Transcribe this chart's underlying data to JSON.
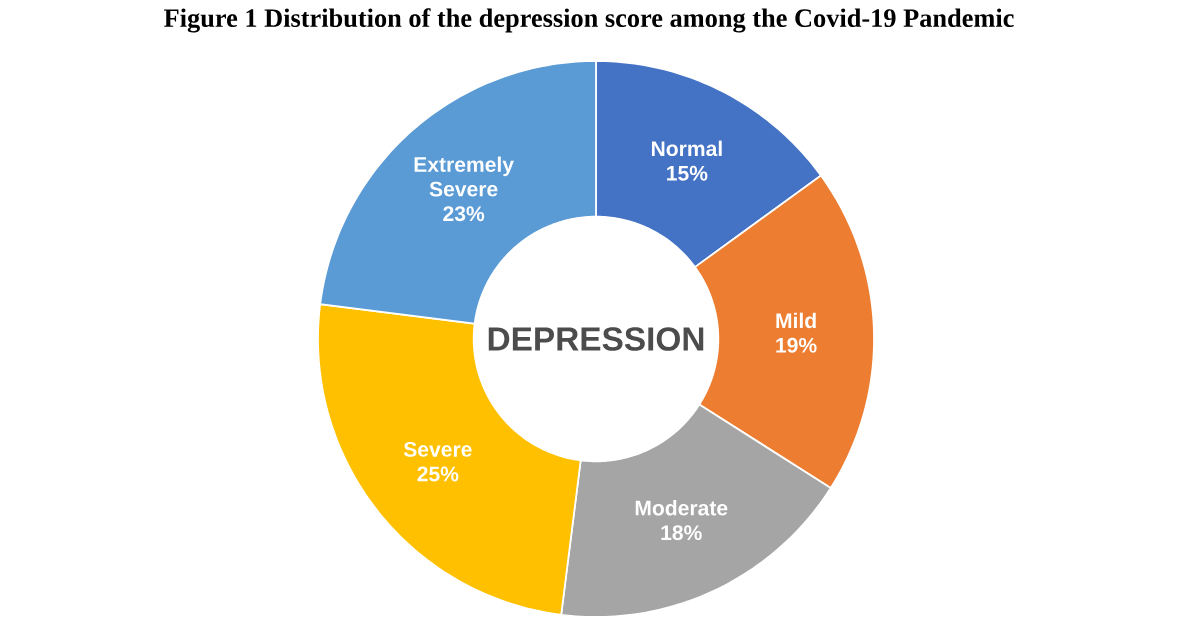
{
  "chart_data": {
    "type": "donut",
    "title": "Figure 1 Distribution of the depression score among the Covid-19 Pandemic",
    "categories": [
      "Normal",
      "Mild",
      "Moderate",
      "Severe",
      "Extremely Severe"
    ],
    "values": [
      15,
      19,
      18,
      25,
      23
    ],
    "colors": [
      "#4472c4",
      "#ed7d31",
      "#a5a5a5",
      "#ffc000",
      "#5b9bd5"
    ],
    "value_labels": [
      "15%",
      "19%",
      "18%",
      "25%",
      "23%"
    ],
    "annotations": [
      "DEPRESSION"
    ]
  }
}
